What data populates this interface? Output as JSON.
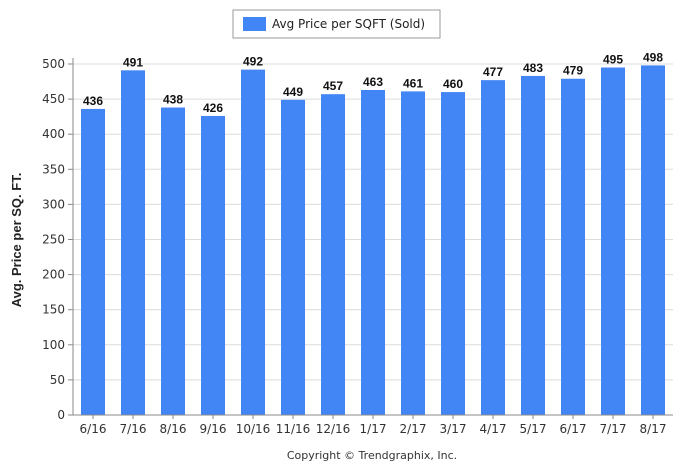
{
  "chart_data": {
    "type": "bar",
    "categories": [
      "6/16",
      "7/16",
      "8/16",
      "9/16",
      "10/16",
      "11/16",
      "12/16",
      "1/17",
      "2/17",
      "3/17",
      "4/17",
      "5/17",
      "6/17",
      "7/17",
      "8/17"
    ],
    "series": [
      {
        "name": "Avg Price per SQFT (Sold)",
        "values": [
          436,
          491,
          438,
          426,
          492,
          449,
          457,
          463,
          461,
          460,
          477,
          483,
          479,
          495,
          498
        ],
        "color": "#4285f4"
      }
    ],
    "ylabel": "Avg. Price per SQ. FT.",
    "xlabel": "",
    "ylim": [
      0,
      500
    ],
    "yticks": [
      0,
      50,
      100,
      150,
      200,
      250,
      300,
      350,
      400,
      450,
      500
    ],
    "grid": true,
    "legend_position": "top-center",
    "show_data_labels": true
  },
  "footer": {
    "copyright": "Copyright © Trendgraphix, Inc."
  }
}
